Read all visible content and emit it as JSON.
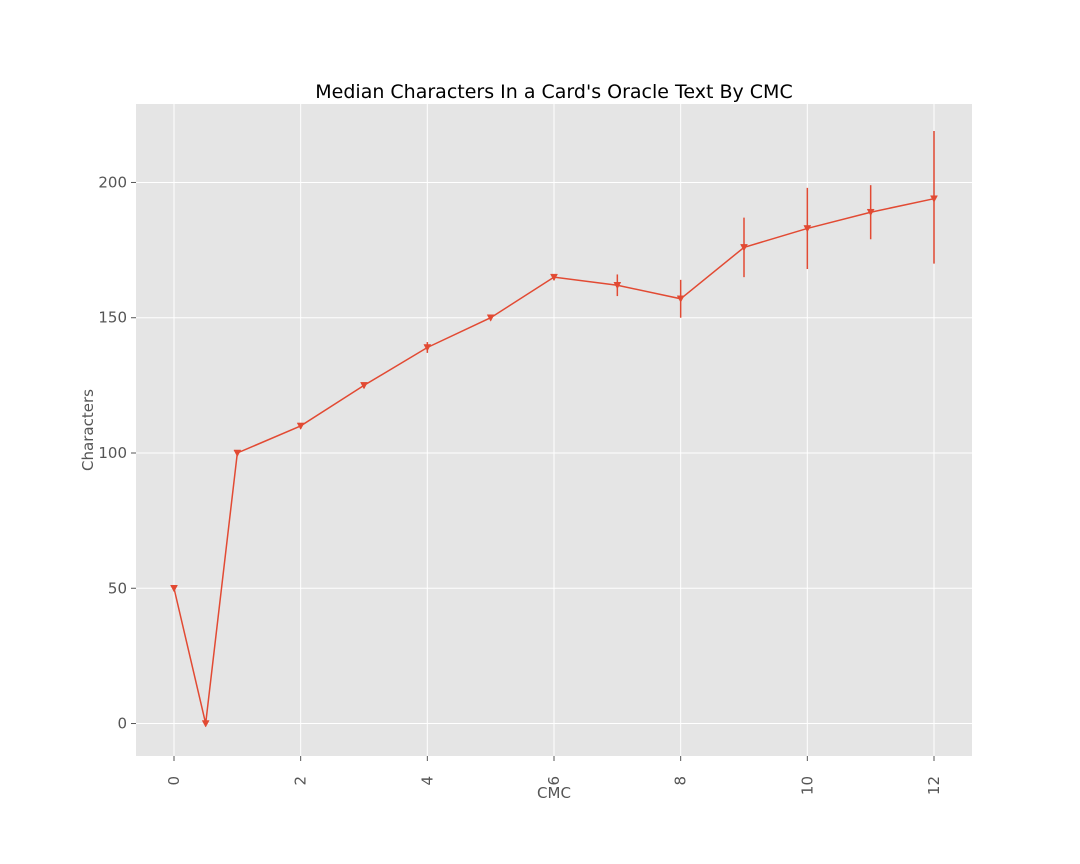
{
  "chart_data": {
    "type": "line",
    "title": "Median Characters In a Card's Oracle Text By CMC",
    "xlabel": "CMC",
    "ylabel": "Characters",
    "xlim": [
      -0.6,
      12.6
    ],
    "ylim": [
      -12,
      229
    ],
    "xticks": [
      0,
      2,
      4,
      6,
      8,
      10,
      12
    ],
    "yticks": [
      0,
      50,
      100,
      150,
      200
    ],
    "grid": true,
    "colors": {
      "line": "#e24a33",
      "plot_bg": "#e5e5e5",
      "grid": "#ffffff"
    },
    "marker": "triangle-down",
    "series": [
      {
        "x": [
          0,
          0.5,
          1,
          2,
          3,
          4,
          5,
          6,
          7,
          8,
          9,
          10,
          11,
          12
        ],
        "y": [
          50,
          0,
          100,
          110,
          125,
          139,
          150,
          165,
          162,
          157,
          176,
          183,
          189,
          194
        ],
        "yerr_low": [
          49,
          0,
          99,
          109,
          124,
          137,
          149,
          164,
          158,
          150,
          165,
          168,
          179,
          170
        ],
        "yerr_high": [
          51,
          0,
          101,
          111,
          126,
          141,
          151,
          166,
          166,
          164,
          187,
          198,
          199,
          219
        ]
      }
    ]
  }
}
